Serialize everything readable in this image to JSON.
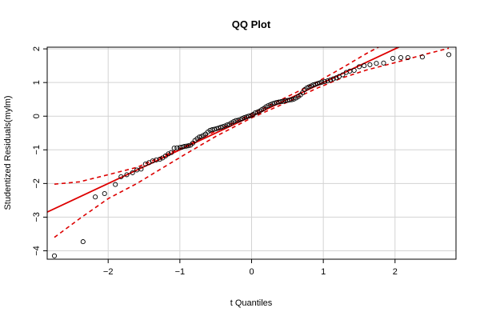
{
  "chart_data": {
    "type": "scatter",
    "title": "QQ Plot",
    "xlabel": "t Quantiles",
    "ylabel": "Studentized Residuals(mylm)",
    "xlim": [
      -2.85,
      2.85
    ],
    "ylim": [
      -4.25,
      2.05
    ],
    "x_ticks": [
      -2,
      -1,
      0,
      1,
      2
    ],
    "y_ticks": [
      -4,
      -3,
      -2,
      -1,
      0,
      1,
      2
    ],
    "x_tick_labels": [
      "−2",
      "−1",
      "0",
      "1",
      "2"
    ],
    "y_tick_labels": [
      "−4",
      "−3",
      "−2",
      "−1",
      "0",
      "1",
      "2"
    ],
    "grid": true,
    "colors": {
      "points": "#000000",
      "reference_line": "#dd0000",
      "envelope": "#dd0000",
      "grid": "#d3d3d3"
    },
    "reference_line": {
      "intercept": 0.0,
      "slope": 1.0
    },
    "envelope_upper": [
      {
        "x": -2.75,
        "y": -2.02
      },
      {
        "x": -2.4,
        "y": -1.95
      },
      {
        "x": -2.0,
        "y": -1.74
      },
      {
        "x": -1.6,
        "y": -1.52
      },
      {
        "x": -1.25,
        "y": -1.2
      },
      {
        "x": -0.9,
        "y": -0.87
      },
      {
        "x": -0.5,
        "y": -0.44
      },
      {
        "x": 0.0,
        "y": 0.06
      },
      {
        "x": 0.5,
        "y": 0.58
      },
      {
        "x": 0.9,
        "y": 1.0
      },
      {
        "x": 1.25,
        "y": 1.42
      },
      {
        "x": 1.6,
        "y": 1.86
      },
      {
        "x": 1.9,
        "y": 2.2
      },
      {
        "x": 2.3,
        "y": 2.6
      },
      {
        "x": 2.75,
        "y": 3.05
      }
    ],
    "envelope_lower": [
      {
        "x": -2.75,
        "y": -3.6
      },
      {
        "x": -2.4,
        "y": -3.05
      },
      {
        "x": -2.0,
        "y": -2.45
      },
      {
        "x": -1.6,
        "y": -2.0
      },
      {
        "x": -1.25,
        "y": -1.55
      },
      {
        "x": -0.9,
        "y": -1.1
      },
      {
        "x": -0.5,
        "y": -0.6
      },
      {
        "x": 0.0,
        "y": -0.05
      },
      {
        "x": 0.5,
        "y": 0.42
      },
      {
        "x": 0.9,
        "y": 0.82
      },
      {
        "x": 1.25,
        "y": 1.13
      },
      {
        "x": 1.6,
        "y": 1.37
      },
      {
        "x": 2.0,
        "y": 1.59
      },
      {
        "x": 2.4,
        "y": 1.83
      },
      {
        "x": 2.75,
        "y": 2.02
      }
    ],
    "points": [
      {
        "x": -2.75,
        "y": -4.15
      },
      {
        "x": -2.35,
        "y": -3.73
      },
      {
        "x": -2.18,
        "y": -2.4
      },
      {
        "x": -2.05,
        "y": -2.3
      },
      {
        "x": -1.9,
        "y": -2.03
      },
      {
        "x": -1.82,
        "y": -1.8
      },
      {
        "x": -1.74,
        "y": -1.74
      },
      {
        "x": -1.66,
        "y": -1.68
      },
      {
        "x": -1.6,
        "y": -1.6
      },
      {
        "x": -1.54,
        "y": -1.57
      },
      {
        "x": -1.48,
        "y": -1.42
      },
      {
        "x": -1.43,
        "y": -1.38
      },
      {
        "x": -1.38,
        "y": -1.33
      },
      {
        "x": -1.33,
        "y": -1.3
      },
      {
        "x": -1.28,
        "y": -1.28
      },
      {
        "x": -1.24,
        "y": -1.24
      },
      {
        "x": -1.2,
        "y": -1.18
      },
      {
        "x": -1.16,
        "y": -1.12
      },
      {
        "x": -1.12,
        "y": -1.08
      },
      {
        "x": -1.08,
        "y": -0.95
      },
      {
        "x": -1.04,
        "y": -0.94
      },
      {
        "x": -1.0,
        "y": -0.93
      },
      {
        "x": -0.97,
        "y": -0.92
      },
      {
        "x": -0.94,
        "y": -0.9
      },
      {
        "x": -0.91,
        "y": -0.89
      },
      {
        "x": -0.88,
        "y": -0.88
      },
      {
        "x": -0.85,
        "y": -0.86
      },
      {
        "x": -0.82,
        "y": -0.8
      },
      {
        "x": -0.79,
        "y": -0.72
      },
      {
        "x": -0.76,
        "y": -0.67
      },
      {
        "x": -0.73,
        "y": -0.62
      },
      {
        "x": -0.7,
        "y": -0.6
      },
      {
        "x": -0.67,
        "y": -0.57
      },
      {
        "x": -0.64,
        "y": -0.53
      },
      {
        "x": -0.61,
        "y": -0.47
      },
      {
        "x": -0.58,
        "y": -0.42
      },
      {
        "x": -0.55,
        "y": -0.4
      },
      {
        "x": -0.52,
        "y": -0.39
      },
      {
        "x": -0.49,
        "y": -0.37
      },
      {
        "x": -0.46,
        "y": -0.35
      },
      {
        "x": -0.43,
        "y": -0.33
      },
      {
        "x": -0.4,
        "y": -0.31
      },
      {
        "x": -0.37,
        "y": -0.29
      },
      {
        "x": -0.34,
        "y": -0.26
      },
      {
        "x": -0.31,
        "y": -0.24
      },
      {
        "x": -0.28,
        "y": -0.2
      },
      {
        "x": -0.25,
        "y": -0.16
      },
      {
        "x": -0.22,
        "y": -0.13
      },
      {
        "x": -0.19,
        "y": -0.12
      },
      {
        "x": -0.16,
        "y": -0.1
      },
      {
        "x": -0.13,
        "y": -0.07
      },
      {
        "x": -0.1,
        "y": -0.04
      },
      {
        "x": -0.07,
        "y": -0.02
      },
      {
        "x": -0.04,
        "y": 0.0
      },
      {
        "x": -0.01,
        "y": 0.02
      },
      {
        "x": 0.02,
        "y": 0.05
      },
      {
        "x": 0.05,
        "y": 0.1
      },
      {
        "x": 0.08,
        "y": 0.12
      },
      {
        "x": 0.11,
        "y": 0.15
      },
      {
        "x": 0.14,
        "y": 0.19
      },
      {
        "x": 0.17,
        "y": 0.23
      },
      {
        "x": 0.2,
        "y": 0.28
      },
      {
        "x": 0.23,
        "y": 0.31
      },
      {
        "x": 0.26,
        "y": 0.34
      },
      {
        "x": 0.29,
        "y": 0.37
      },
      {
        "x": 0.32,
        "y": 0.39
      },
      {
        "x": 0.35,
        "y": 0.41
      },
      {
        "x": 0.38,
        "y": 0.42
      },
      {
        "x": 0.41,
        "y": 0.43
      },
      {
        "x": 0.44,
        "y": 0.44
      },
      {
        "x": 0.47,
        "y": 0.46
      },
      {
        "x": 0.5,
        "y": 0.47
      },
      {
        "x": 0.53,
        "y": 0.48
      },
      {
        "x": 0.56,
        "y": 0.49
      },
      {
        "x": 0.59,
        "y": 0.51
      },
      {
        "x": 0.62,
        "y": 0.54
      },
      {
        "x": 0.65,
        "y": 0.58
      },
      {
        "x": 0.68,
        "y": 0.63
      },
      {
        "x": 0.71,
        "y": 0.7
      },
      {
        "x": 0.74,
        "y": 0.79
      },
      {
        "x": 0.77,
        "y": 0.84
      },
      {
        "x": 0.8,
        "y": 0.87
      },
      {
        "x": 0.83,
        "y": 0.9
      },
      {
        "x": 0.86,
        "y": 0.93
      },
      {
        "x": 0.89,
        "y": 0.95
      },
      {
        "x": 0.92,
        "y": 0.97
      },
      {
        "x": 0.95,
        "y": 0.99
      },
      {
        "x": 0.98,
        "y": 1.01
      },
      {
        "x": 1.02,
        "y": 1.03
      },
      {
        "x": 1.06,
        "y": 1.05
      },
      {
        "x": 1.1,
        "y": 1.08
      },
      {
        "x": 1.14,
        "y": 1.11
      },
      {
        "x": 1.18,
        "y": 1.14
      },
      {
        "x": 1.22,
        "y": 1.18
      },
      {
        "x": 1.27,
        "y": 1.23
      },
      {
        "x": 1.32,
        "y": 1.3
      },
      {
        "x": 1.37,
        "y": 1.34
      },
      {
        "x": 1.43,
        "y": 1.36
      },
      {
        "x": 1.5,
        "y": 1.47
      },
      {
        "x": 1.57,
        "y": 1.5
      },
      {
        "x": 1.65,
        "y": 1.53
      },
      {
        "x": 1.74,
        "y": 1.57
      },
      {
        "x": 1.84,
        "y": 1.58
      },
      {
        "x": 1.97,
        "y": 1.72
      },
      {
        "x": 2.08,
        "y": 1.74
      },
      {
        "x": 2.18,
        "y": 1.74
      },
      {
        "x": 2.38,
        "y": 1.76
      },
      {
        "x": 2.75,
        "y": 1.83
      }
    ]
  }
}
